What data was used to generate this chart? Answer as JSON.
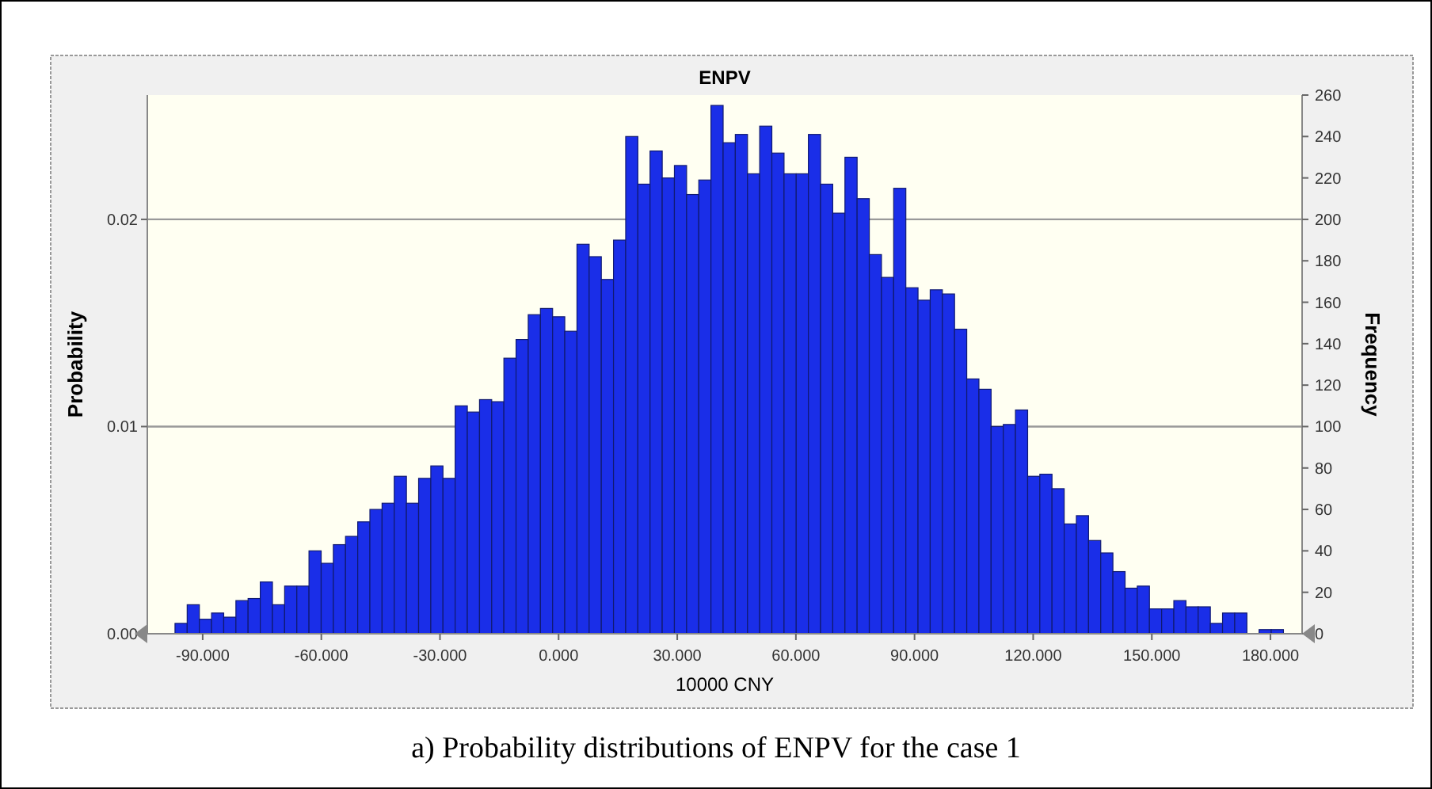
{
  "chart_data": {
    "type": "histogram",
    "title": "ENPV",
    "xlabel": "10000 CNY",
    "ylabel": "Probability",
    "y2label": "Frequency",
    "annotations": [
      "a) Probability distributions of ENPV for the case 1"
    ],
    "bins": [
      -97,
      -93.92,
      -90.84,
      -87.76,
      -84.68,
      -81.6,
      -78.52,
      -75.44,
      -72.36,
      -69.28,
      -66.2,
      -63.12,
      -60.04,
      -56.96,
      -53.88,
      -50.8,
      -47.72,
      -44.64,
      -41.56,
      -38.48,
      -35.4,
      -32.32,
      -29.24,
      -26.16,
      -23.08,
      -20,
      -16.92,
      -13.84,
      -10.76,
      -7.68,
      -4.6,
      -1.52,
      1.56,
      4.64,
      7.72,
      10.8,
      13.88,
      16.96,
      20.04,
      23.12,
      26.2,
      29.28,
      32.36,
      35.44,
      38.52,
      41.6,
      44.68,
      47.76,
      50.84,
      53.92,
      57,
      60.08,
      63.16,
      66.24,
      69.32,
      72.4,
      75.48,
      78.56,
      81.64,
      84.72,
      87.8,
      90.88,
      93.96,
      97.04,
      100.12,
      103.2,
      106.28,
      109.36,
      112.44,
      115.52,
      118.6,
      121.68,
      124.76,
      127.84,
      130.92,
      134,
      137.08,
      140.16,
      143.24,
      146.32,
      149.4,
      152.48,
      155.56,
      158.64,
      161.72,
      164.8,
      167.88,
      170.96,
      174.04,
      177.12,
      180.2,
      183.28
    ],
    "series": [
      {
        "axis": "y2",
        "color": "#1a2ee8",
        "values": [
          5,
          14,
          7,
          10,
          8,
          16,
          17,
          25,
          14,
          23,
          23,
          40,
          34,
          43,
          47,
          54,
          60,
          63,
          76,
          63,
          75,
          81,
          75,
          110,
          107,
          113,
          112,
          133,
          142,
          154,
          157,
          153,
          146,
          188,
          182,
          171,
          190,
          240,
          217,
          233,
          220,
          226,
          212,
          219,
          255,
          237,
          241,
          222,
          245,
          232,
          222,
          222,
          241,
          217,
          203,
          230,
          210,
          183,
          172,
          215,
          167,
          161,
          166,
          164,
          147,
          123,
          118,
          100,
          101,
          108,
          76,
          77,
          70,
          53,
          57,
          45,
          39,
          30,
          22,
          23,
          12,
          12,
          16,
          13,
          13,
          5,
          10,
          10,
          0,
          2,
          2
        ]
      }
    ],
    "xlim": [
      -104,
      188
    ],
    "xticks": [
      {
        "value": -90,
        "label": "-90.000"
      },
      {
        "value": -60,
        "label": "-60.000"
      },
      {
        "value": -30,
        "label": "-30.000"
      },
      {
        "value": 0,
        "label": "0.000"
      },
      {
        "value": 30,
        "label": "30.000"
      },
      {
        "value": 60,
        "label": "60.000"
      },
      {
        "value": 90,
        "label": "90.000"
      },
      {
        "value": 120,
        "label": "120.000"
      },
      {
        "value": 150,
        "label": "150.000"
      },
      {
        "value": 180,
        "label": "180.000"
      }
    ],
    "ylim": [
      0,
      0.026
    ],
    "yticks": [
      {
        "value": 0,
        "label": "0.00"
      },
      0.01,
      0.02
    ],
    "y2lim": [
      0,
      260
    ],
    "y2ticks": [
      0,
      20,
      40,
      60,
      80,
      100,
      120,
      140,
      160,
      180,
      200,
      220,
      240,
      260
    ],
    "grid": "y"
  }
}
